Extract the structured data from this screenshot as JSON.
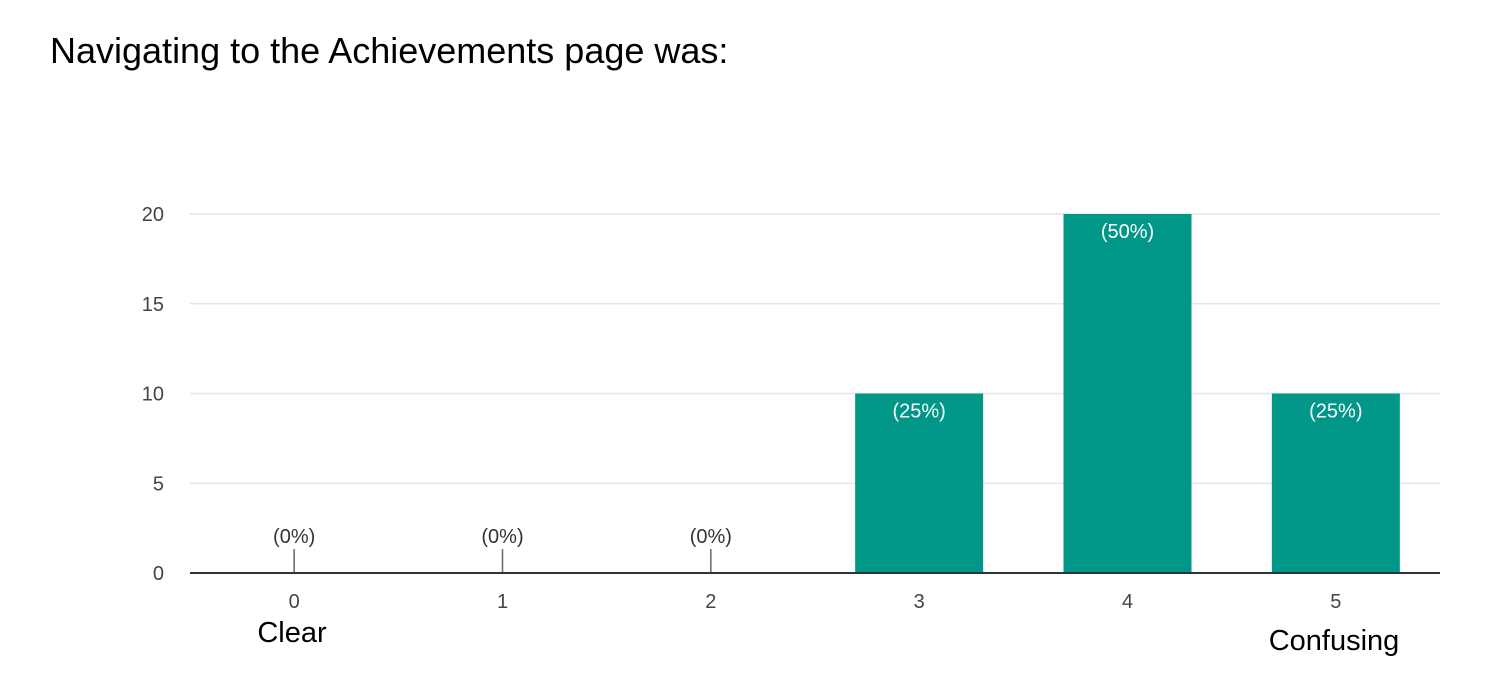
{
  "question": {
    "title": "Navigating to the Achievements page was:"
  },
  "colors": {
    "bar": "#009688",
    "bar_label": "#ffffff",
    "zero_label": "#333333",
    "gridline": "#e6e6e6",
    "axis": "#333333"
  },
  "chart_data": {
    "type": "bar",
    "categories": [
      "0",
      "1",
      "2",
      "3",
      "4",
      "5"
    ],
    "values": [
      0,
      0,
      0,
      10,
      20,
      10
    ],
    "data_labels": [
      "(0%)",
      "(0%)",
      "(0%)",
      "(25%)",
      "(50%)",
      "(25%)"
    ],
    "yticks": [
      0,
      5,
      10,
      15,
      20
    ],
    "ylim": [
      0,
      20
    ],
    "scale_labels": {
      "low": "Clear",
      "high": "Confusing"
    },
    "grid": true,
    "legend": "none"
  }
}
